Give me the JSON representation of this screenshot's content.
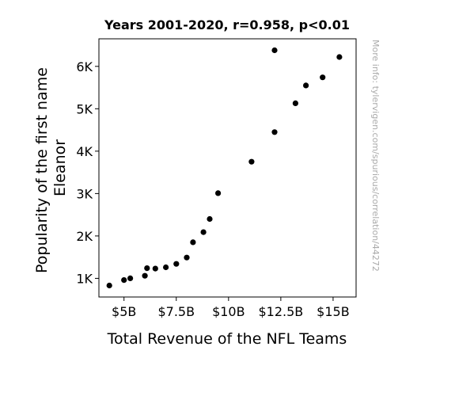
{
  "chart_data": {
    "type": "scatter",
    "title": "Years 2001-2020, r=0.958, p<0.01",
    "xlabel": "Total Revenue of the NFL Teams",
    "ylabel_lines": [
      "Popularity of the first name",
      "Eleanor"
    ],
    "xlim": [
      3.8,
      16.1
    ],
    "ylim": [
      560,
      6650
    ],
    "x_ticks": [
      {
        "value": 5,
        "label": "$5B"
      },
      {
        "value": 7.5,
        "label": "$7.5B"
      },
      {
        "value": 10,
        "label": "$10B"
      },
      {
        "value": 12.5,
        "label": "$12.5B"
      },
      {
        "value": 15,
        "label": "$15B"
      }
    ],
    "y_ticks": [
      {
        "value": 1000,
        "label": "1K"
      },
      {
        "value": 2000,
        "label": "2K"
      },
      {
        "value": 3000,
        "label": "3K"
      },
      {
        "value": 4000,
        "label": "4K"
      },
      {
        "value": 5000,
        "label": "5K"
      },
      {
        "value": 6000,
        "label": "6K"
      }
    ],
    "grid": false,
    "marker_color": "#000000",
    "points": [
      {
        "x": 4.3,
        "y": 830
      },
      {
        "x": 5.0,
        "y": 960
      },
      {
        "x": 5.3,
        "y": 1000
      },
      {
        "x": 6.0,
        "y": 1060
      },
      {
        "x": 6.1,
        "y": 1240
      },
      {
        "x": 6.5,
        "y": 1230
      },
      {
        "x": 7.0,
        "y": 1260
      },
      {
        "x": 7.5,
        "y": 1340
      },
      {
        "x": 8.0,
        "y": 1490
      },
      {
        "x": 8.3,
        "y": 1850
      },
      {
        "x": 8.8,
        "y": 2090
      },
      {
        "x": 9.1,
        "y": 2400
      },
      {
        "x": 9.5,
        "y": 3010
      },
      {
        "x": 11.1,
        "y": 3750
      },
      {
        "x": 12.2,
        "y": 4450
      },
      {
        "x": 12.2,
        "y": 6380
      },
      {
        "x": 13.2,
        "y": 5130
      },
      {
        "x": 13.7,
        "y": 5550
      },
      {
        "x": 14.5,
        "y": 5740
      },
      {
        "x": 15.3,
        "y": 6220
      }
    ]
  },
  "watermark": "More info: tylervigen.com/spurious/correlation/44272"
}
